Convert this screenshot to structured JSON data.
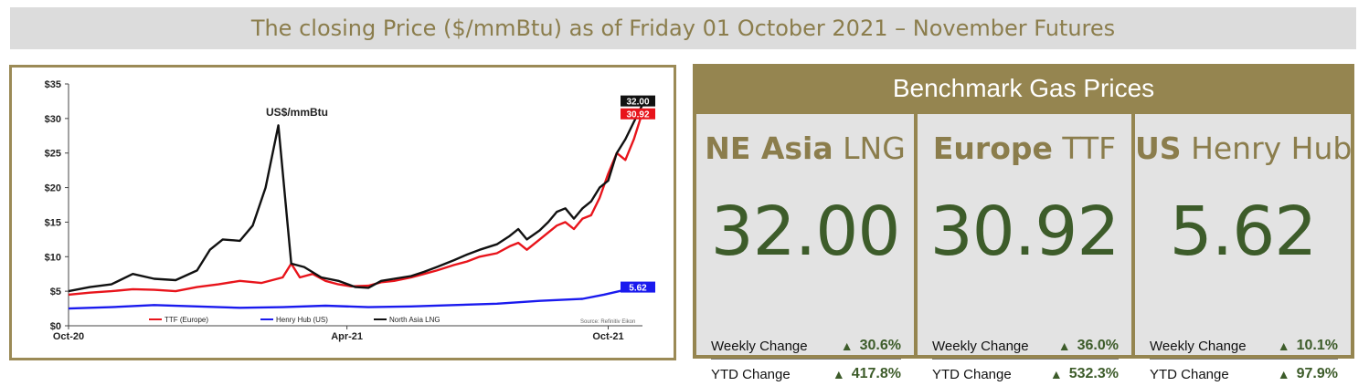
{
  "header": {
    "title": "The closing Price ($/mmBtu) as of Friday 01 October 2021 – November Futures"
  },
  "chart_data": {
    "type": "line",
    "title": "US$/mmBtu",
    "source": "Source: Refinitiv Eikon",
    "ylim": [
      0,
      35
    ],
    "y_ticks": [
      "$0",
      "$5",
      "$10",
      "$15",
      "$20",
      "$25",
      "$30",
      "$35"
    ],
    "x_ticks": [
      "Oct-20",
      "Apr-21",
      "Oct-21"
    ],
    "x_domain_months": [
      0,
      12
    ],
    "series": [
      {
        "name": "TTF (Europe)",
        "color": "#e8141b",
        "end_label": "30.92",
        "points": [
          [
            0,
            4.5
          ],
          [
            0.5,
            4.8
          ],
          [
            1,
            5.0
          ],
          [
            1.5,
            5.3
          ],
          [
            2,
            5.2
          ],
          [
            2.5,
            5.0
          ],
          [
            3,
            5.6
          ],
          [
            3.5,
            6.0
          ],
          [
            4,
            6.5
          ],
          [
            4.5,
            6.2
          ],
          [
            5,
            7.0
          ],
          [
            5.2,
            9.0
          ],
          [
            5.4,
            7.0
          ],
          [
            5.7,
            7.5
          ],
          [
            6,
            6.5
          ],
          [
            6.3,
            6.0
          ],
          [
            6.6,
            5.7
          ],
          [
            7,
            5.8
          ],
          [
            7.3,
            6.3
          ],
          [
            7.6,
            6.5
          ],
          [
            8,
            7.0
          ],
          [
            8.3,
            7.5
          ],
          [
            8.6,
            8.0
          ],
          [
            9,
            8.8
          ],
          [
            9.3,
            9.3
          ],
          [
            9.6,
            10.0
          ],
          [
            10,
            10.5
          ],
          [
            10.3,
            11.5
          ],
          [
            10.5,
            12.0
          ],
          [
            10.7,
            11.0
          ],
          [
            11,
            12.5
          ],
          [
            11.2,
            13.5
          ],
          [
            11.4,
            14.5
          ],
          [
            11.6,
            15.0
          ],
          [
            11.8,
            14.0
          ],
          [
            12,
            15.5
          ],
          [
            12.2,
            16.0
          ],
          [
            12.4,
            18.5
          ],
          [
            12.6,
            22.0
          ],
          [
            12.8,
            25.0
          ],
          [
            13,
            24.0
          ],
          [
            13.2,
            27.0
          ],
          [
            13.4,
            30.92
          ]
        ]
      },
      {
        "name": "Henry Hub (US)",
        "color": "#1a1aee",
        "end_label": "5.62",
        "points": [
          [
            0,
            2.5
          ],
          [
            1,
            2.7
          ],
          [
            2,
            3.0
          ],
          [
            3,
            2.8
          ],
          [
            4,
            2.6
          ],
          [
            5,
            2.7
          ],
          [
            6,
            2.9
          ],
          [
            7,
            2.7
          ],
          [
            8,
            2.8
          ],
          [
            9,
            3.0
          ],
          [
            10,
            3.2
          ],
          [
            11,
            3.6
          ],
          [
            12,
            3.9
          ],
          [
            12.5,
            4.5
          ],
          [
            13,
            5.2
          ],
          [
            13.4,
            5.62
          ]
        ]
      },
      {
        "name": "North Asia LNG",
        "color": "#111111",
        "end_label": "32.00",
        "points": [
          [
            0,
            5.0
          ],
          [
            0.5,
            5.6
          ],
          [
            1,
            6.0
          ],
          [
            1.5,
            7.5
          ],
          [
            2,
            6.8
          ],
          [
            2.5,
            6.6
          ],
          [
            3,
            8.0
          ],
          [
            3.3,
            11.0
          ],
          [
            3.6,
            12.5
          ],
          [
            4,
            12.3
          ],
          [
            4.3,
            14.5
          ],
          [
            4.6,
            20.0
          ],
          [
            4.9,
            29.0
          ],
          [
            5.2,
            9.0
          ],
          [
            5.5,
            8.5
          ],
          [
            5.9,
            7.0
          ],
          [
            6.3,
            6.5
          ],
          [
            6.7,
            5.6
          ],
          [
            7,
            5.5
          ],
          [
            7.3,
            6.5
          ],
          [
            7.6,
            6.8
          ],
          [
            8,
            7.2
          ],
          [
            8.3,
            7.8
          ],
          [
            8.6,
            8.5
          ],
          [
            9,
            9.5
          ],
          [
            9.3,
            10.3
          ],
          [
            9.6,
            11.0
          ],
          [
            10,
            11.8
          ],
          [
            10.3,
            13.0
          ],
          [
            10.5,
            14.0
          ],
          [
            10.7,
            12.5
          ],
          [
            11,
            13.8
          ],
          [
            11.2,
            15.0
          ],
          [
            11.4,
            16.5
          ],
          [
            11.6,
            17.0
          ],
          [
            11.8,
            15.5
          ],
          [
            12,
            17.0
          ],
          [
            12.2,
            18.0
          ],
          [
            12.4,
            20.0
          ],
          [
            12.6,
            21.0
          ],
          [
            12.8,
            25.0
          ],
          [
            13,
            27.0
          ],
          [
            13.2,
            29.5
          ],
          [
            13.4,
            32.0
          ]
        ]
      }
    ],
    "legend": [
      "TTF (Europe)",
      "Henry Hub (US)",
      "North Asia LNG"
    ],
    "grid": false
  },
  "panel": {
    "title": "Benchmark Gas Prices",
    "cards": [
      {
        "title_bold": "NE Asia",
        "title_rest": " LNG",
        "value": "32.00",
        "weekly_label": "Weekly Change",
        "weekly_value": "30.6%",
        "ytd_label": "YTD Change",
        "ytd_value": "417.8%"
      },
      {
        "title_bold": "Europe",
        "title_rest": " TTF",
        "value": "30.92",
        "weekly_label": "Weekly Change",
        "weekly_value": "36.0%",
        "ytd_label": "YTD Change",
        "ytd_value": "532.3%"
      },
      {
        "title_bold": "US",
        "title_rest": " Henry Hub",
        "value": "5.62",
        "weekly_label": "Weekly Change",
        "weekly_value": "10.1%",
        "ytd_label": "YTD Change",
        "ytd_value": "97.9%"
      }
    ],
    "up_arrow": "▲",
    "accent_color": "#958550",
    "value_color": "#3d5c2a"
  }
}
